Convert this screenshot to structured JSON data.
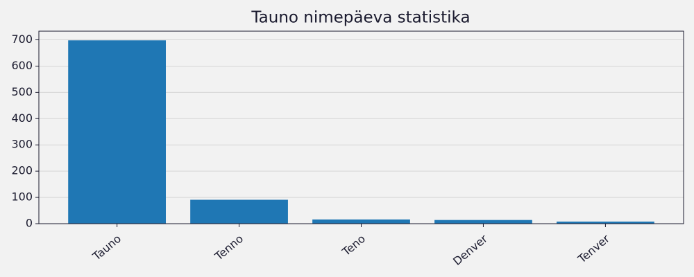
{
  "chart_data": {
    "type": "bar",
    "title": "Tauno nimepäeva statistika",
    "categories": [
      "Tauno",
      "Tenno",
      "Teno",
      "Denver",
      "Tenver"
    ],
    "values": [
      698,
      91,
      16,
      14,
      8
    ],
    "color": "#1f77b4",
    "ylim": [
      0,
      733
    ],
    "yticks": [
      0,
      100,
      200,
      300,
      400,
      500,
      600,
      700
    ],
    "grid": true
  }
}
